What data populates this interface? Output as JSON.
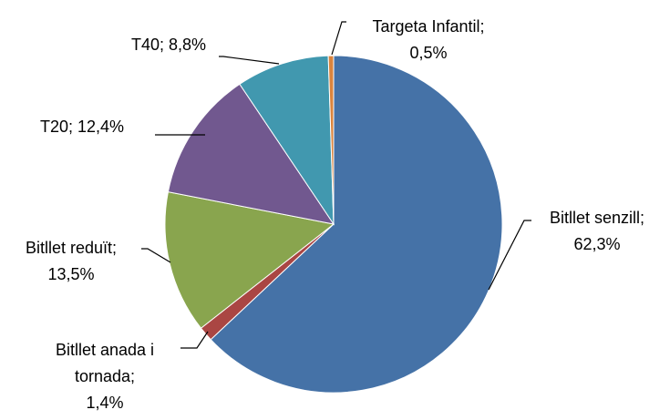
{
  "chart_data": {
    "type": "pie",
    "categories": [
      "Bitllet senzill",
      "Bitllet anada i tornada",
      "Bitllet reduït",
      "T20",
      "T40",
      "Targeta Infantil"
    ],
    "values": [
      62.3,
      1.4,
      13.5,
      12.4,
      8.8,
      0.5
    ],
    "value_labels": [
      [
        "Bitllet senzill;",
        "62,3%"
      ],
      [
        "Bitllet anada i",
        "tornada;",
        "1,4%"
      ],
      [
        "Bitllet reduït;",
        "13,5%"
      ],
      [
        "T20; 12,4%"
      ],
      [
        "T40; 8,8%"
      ],
      [
        "Targeta Infantil;",
        "0,5%"
      ]
    ],
    "colors": [
      "#4572a7",
      "#aa4643",
      "#89a54e",
      "#71588f",
      "#4198af",
      "#db843d"
    ]
  }
}
